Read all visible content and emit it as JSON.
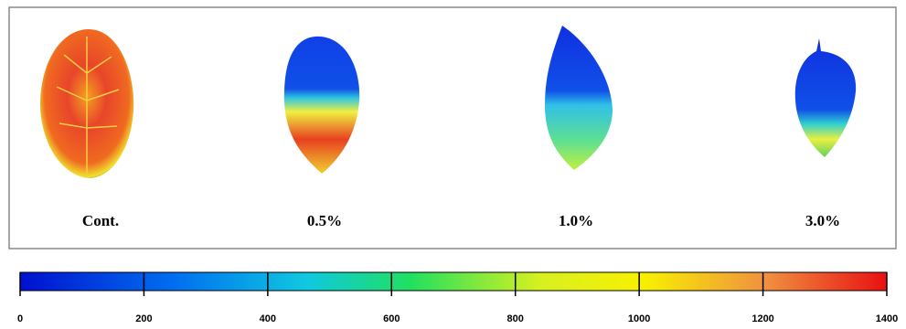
{
  "panels": [
    {
      "label": "Cont."
    },
    {
      "label": "0.5%"
    },
    {
      "label": "1.0%"
    },
    {
      "label": "3.0%"
    }
  ],
  "colorbar": {
    "lim": [
      0,
      1400
    ],
    "ticks": [
      0,
      200,
      400,
      600,
      800,
      1000,
      1200,
      1400
    ]
  }
}
